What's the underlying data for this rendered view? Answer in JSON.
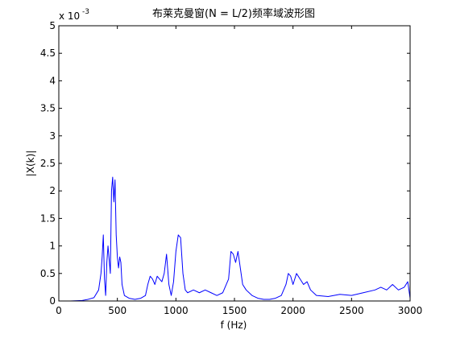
{
  "chart_data": {
    "type": "line",
    "title": "布莱克曼窗(N = L/2)频率域波形图",
    "xlabel": "f (Hz)",
    "ylabel": "|X(k)|",
    "exponent_label": "x 10",
    "exponent_power": "-3",
    "xlim": [
      0,
      3000
    ],
    "ylim": [
      0,
      5
    ],
    "xticks": [
      0,
      500,
      1000,
      1500,
      2000,
      2500,
      3000
    ],
    "yticks": [
      0,
      0.5,
      1,
      1.5,
      2,
      2.5,
      3,
      3.5,
      4,
      4.5,
      5
    ],
    "ytick_labels": [
      "0",
      "0.5",
      "1",
      "1.5",
      "2",
      "2.5",
      "3",
      "3.5",
      "4",
      "4.5",
      "5"
    ],
    "grid": false,
    "series": [
      {
        "color": "#0000ff",
        "x": [
          0,
          100,
          200,
          250,
          300,
          340,
          360,
          370,
          380,
          390,
          400,
          410,
          420,
          440,
          450,
          460,
          470,
          480,
          490,
          500,
          510,
          520,
          530,
          540,
          560,
          600,
          650,
          700,
          740,
          760,
          780,
          800,
          820,
          840,
          860,
          880,
          900,
          920,
          940,
          960,
          980,
          1000,
          1020,
          1040,
          1060,
          1080,
          1100,
          1150,
          1200,
          1250,
          1300,
          1350,
          1400,
          1450,
          1470,
          1490,
          1510,
          1530,
          1550,
          1570,
          1600,
          1650,
          1700,
          1750,
          1800,
          1850,
          1900,
          1940,
          1960,
          1980,
          2000,
          2030,
          2060,
          2090,
          2120,
          2150,
          2200,
          2300,
          2400,
          2500,
          2600,
          2700,
          2750,
          2800,
          2850,
          2900,
          2950,
          2980,
          3000
        ],
        "y": [
          0.0,
          0.0,
          0.01,
          0.03,
          0.06,
          0.2,
          0.5,
          0.8,
          1.2,
          0.4,
          0.1,
          0.7,
          1.0,
          0.5,
          2.0,
          2.25,
          1.8,
          2.2,
          1.2,
          0.8,
          0.6,
          0.8,
          0.7,
          0.3,
          0.1,
          0.05,
          0.03,
          0.05,
          0.1,
          0.3,
          0.45,
          0.4,
          0.3,
          0.45,
          0.4,
          0.35,
          0.5,
          0.85,
          0.3,
          0.1,
          0.35,
          0.9,
          1.2,
          1.15,
          0.5,
          0.2,
          0.15,
          0.2,
          0.15,
          0.2,
          0.15,
          0.1,
          0.15,
          0.4,
          0.9,
          0.85,
          0.7,
          0.9,
          0.6,
          0.3,
          0.2,
          0.1,
          0.05,
          0.03,
          0.03,
          0.05,
          0.1,
          0.3,
          0.5,
          0.45,
          0.3,
          0.5,
          0.4,
          0.3,
          0.35,
          0.2,
          0.1,
          0.08,
          0.12,
          0.1,
          0.15,
          0.2,
          0.25,
          0.2,
          0.3,
          0.2,
          0.25,
          0.35,
          0.05
        ]
      }
    ]
  }
}
